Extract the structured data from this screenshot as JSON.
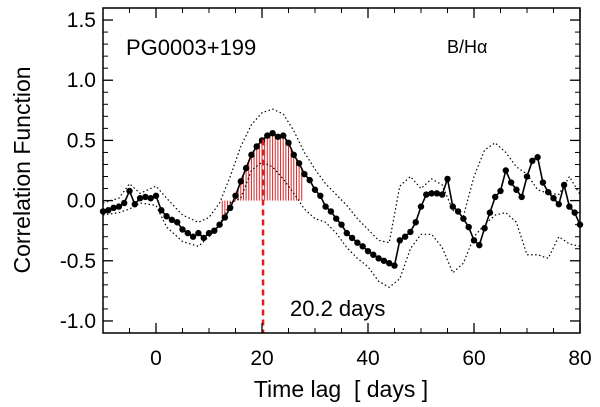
{
  "chart_data": {
    "type": "line",
    "title": "",
    "xlabel": "Time lag  [ days ]",
    "ylabel": "Correlation Function",
    "xlim": [
      -10,
      80
    ],
    "ylim": [
      -1.1,
      1.6
    ],
    "x_ticks": [
      0,
      20,
      40,
      60,
      80
    ],
    "x_tick_labels": [
      "0",
      "20",
      "40",
      "60",
      "80"
    ],
    "y_ticks": [
      -1.0,
      -0.5,
      0.0,
      0.5,
      1.0,
      1.5
    ],
    "y_tick_labels": [
      "-1.0",
      "-0.5",
      "0.0",
      "0.5",
      "1.0",
      "1.5"
    ],
    "grid": false,
    "annotations": {
      "object": "PG0003+199",
      "band": "B/Hα",
      "lag_label": "20.2 days"
    },
    "lag_marker_x": 20.2,
    "shaded_region": {
      "x_from": 12.5,
      "x_to": 27.5,
      "color": "#d62728"
    },
    "colors": {
      "ccf": "#000000",
      "error_band": "#000000",
      "lag_marker": "#e41a1c",
      "centroid_hatch": "#d62728"
    },
    "series": [
      {
        "role": "ccf",
        "style": "solid-with-markers",
        "x": [
          -10,
          -9,
          -8,
          -7,
          -6,
          -5,
          -4,
          -3,
          -2,
          -1,
          0,
          1,
          2,
          3,
          4,
          5,
          6,
          7,
          8,
          9,
          10,
          11,
          12,
          13,
          14,
          15,
          16,
          17,
          18,
          19,
          20,
          21,
          22,
          23,
          24,
          25,
          26,
          27,
          28,
          29,
          30,
          31,
          32,
          33,
          34,
          35,
          36,
          37,
          38,
          39,
          40,
          41,
          42,
          43,
          44,
          45,
          46,
          47,
          48,
          49,
          50,
          51,
          52,
          53,
          54,
          55,
          56,
          57,
          58,
          59,
          60,
          61,
          62,
          63,
          64,
          65,
          66,
          67,
          68,
          69,
          70,
          71,
          72,
          73,
          74,
          75,
          76,
          77,
          78,
          79,
          80
        ],
        "y": [
          -0.09,
          -0.08,
          -0.06,
          -0.05,
          -0.02,
          0.08,
          -0.03,
          0.02,
          0.03,
          0.02,
          0.04,
          -0.08,
          -0.13,
          -0.16,
          -0.18,
          -0.24,
          -0.27,
          -0.3,
          -0.27,
          -0.31,
          -0.27,
          -0.25,
          -0.2,
          -0.14,
          -0.06,
          0.04,
          0.16,
          0.27,
          0.38,
          0.45,
          0.5,
          0.54,
          0.56,
          0.53,
          0.54,
          0.48,
          0.38,
          0.31,
          0.22,
          0.17,
          0.09,
          0.04,
          -0.05,
          -0.09,
          -0.15,
          -0.2,
          -0.27,
          -0.31,
          -0.35,
          -0.38,
          -0.42,
          -0.45,
          -0.48,
          -0.5,
          -0.52,
          -0.54,
          -0.33,
          -0.3,
          -0.26,
          -0.18,
          -0.05,
          0.05,
          0.06,
          0.06,
          0.05,
          0.18,
          -0.05,
          -0.09,
          -0.15,
          -0.22,
          -0.33,
          -0.37,
          -0.23,
          -0.1,
          0.03,
          0.08,
          0.25,
          0.15,
          0.09,
          0.03,
          0.2,
          0.33,
          0.36,
          0.15,
          0.07,
          0.02,
          -0.03,
          0.13,
          -0.05,
          -0.1,
          -0.2
        ]
      },
      {
        "role": "upper-error",
        "style": "dotted",
        "x": [
          -10,
          -7,
          -5,
          -3,
          0,
          2,
          5,
          8,
          10,
          12,
          14,
          16,
          18,
          20,
          22,
          24,
          26,
          28,
          30,
          32,
          34,
          36,
          38,
          40,
          42,
          44,
          46,
          48,
          50,
          52,
          54,
          56,
          58,
          60,
          62,
          64,
          66,
          68,
          70,
          72,
          74,
          76,
          78,
          80
        ],
        "y": [
          -0.02,
          0.02,
          0.14,
          0.06,
          0.12,
          0.02,
          -0.12,
          -0.18,
          -0.14,
          -0.02,
          0.2,
          0.45,
          0.63,
          0.73,
          0.76,
          0.72,
          0.58,
          0.4,
          0.26,
          0.14,
          0.05,
          -0.04,
          -0.15,
          -0.24,
          -0.33,
          -0.35,
          0.12,
          0.2,
          0.1,
          0.18,
          0.13,
          -0.08,
          -0.13,
          0.2,
          0.42,
          0.48,
          0.4,
          0.28,
          0.22,
          0.09,
          0.06,
          0.05,
          0.2,
          0.05
        ]
      },
      {
        "role": "lower-error",
        "style": "dotted",
        "x": [
          -10,
          -7,
          -5,
          -3,
          0,
          2,
          5,
          8,
          10,
          12,
          14,
          16,
          18,
          20,
          22,
          24,
          26,
          28,
          30,
          32,
          34,
          36,
          38,
          40,
          42,
          44,
          46,
          48,
          50,
          52,
          54,
          56,
          58,
          60,
          62,
          64,
          66,
          68,
          70,
          72,
          74,
          76,
          78,
          80
        ],
        "y": [
          -0.12,
          -0.1,
          -0.07,
          -0.02,
          -0.04,
          -0.22,
          -0.34,
          -0.38,
          -0.3,
          -0.2,
          -0.02,
          0.02,
          0.25,
          0.32,
          0.28,
          0.18,
          0.06,
          -0.07,
          -0.15,
          -0.18,
          -0.27,
          -0.39,
          -0.48,
          -0.55,
          -0.67,
          -0.72,
          -0.65,
          -0.4,
          -0.28,
          -0.28,
          -0.39,
          -0.6,
          -0.52,
          -0.3,
          -0.2,
          -0.12,
          -0.1,
          -0.18,
          -0.45,
          -0.45,
          -0.48,
          -0.3,
          -0.36,
          -0.38
        ]
      }
    ]
  }
}
